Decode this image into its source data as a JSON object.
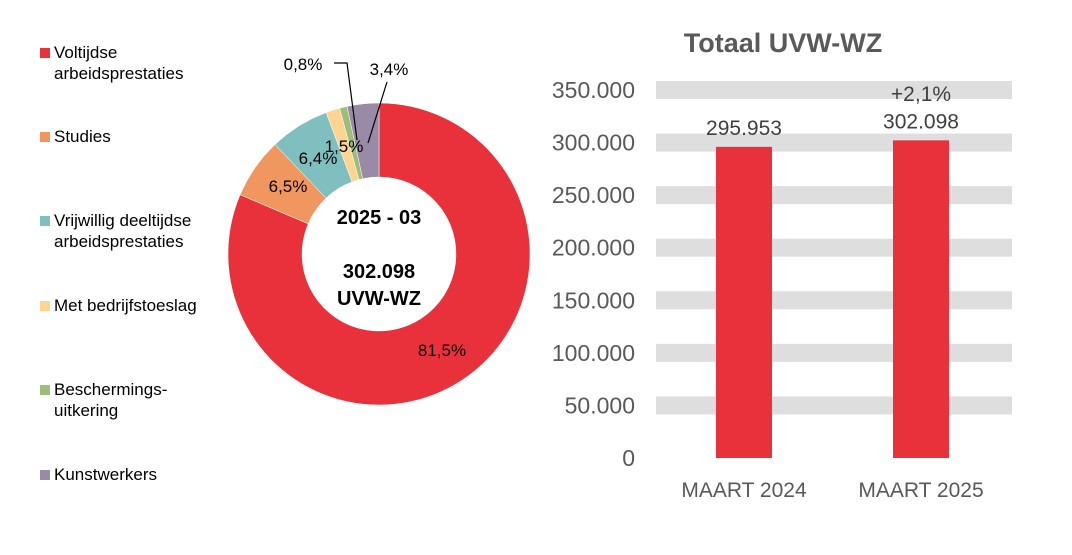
{
  "chart_data": [
    {
      "type": "pie",
      "variant": "donut",
      "center_label": {
        "period": "2025 - 03",
        "total": "302.098",
        "unit": "UVW-WZ"
      },
      "slices": [
        {
          "name": "Voltijdse arbeidsprestaties",
          "value": 81.5,
          "label": "81,5%",
          "color": "#E8313A"
        },
        {
          "name": "Studies",
          "value": 6.5,
          "label": "6,5%",
          "color": "#F0975F"
        },
        {
          "name": "Vrijwillig deeltijdse arbeidsprestaties",
          "value": 6.4,
          "label": "6,4%",
          "color": "#80BFBF"
        },
        {
          "name": "Met bedrijfstoeslag",
          "value": 1.5,
          "label": "1,5%",
          "color": "#FDD590"
        },
        {
          "name": "Beschermings-uitkering",
          "value": 0.8,
          "label": "0,8%",
          "color": "#9DBE7B"
        },
        {
          "name": "Kunstwerkers",
          "value": 3.4,
          "label": "3,4%",
          "color": "#9A8AA5"
        }
      ],
      "legend": {
        "placement": "left",
        "items": [
          [
            "Voltijdse",
            "arbeidsprestaties"
          ],
          [
            "Studies"
          ],
          [
            "Vrijwillig deeltijdse",
            "arbeidsprestaties"
          ],
          [
            "Met bedrijfstoeslag"
          ],
          [
            "Beschermings-",
            "uitkering"
          ],
          [
            "Kunstwerkers"
          ]
        ]
      }
    },
    {
      "type": "bar",
      "title": "Totaal UVW-WZ",
      "categories": [
        "MAART 2024",
        "MAART 2025"
      ],
      "values": [
        295953,
        302098
      ],
      "value_labels": [
        "295.953",
        "302.098"
      ],
      "annotation": "+2,1%",
      "ylim": [
        0,
        350000
      ],
      "yticks": [
        0,
        50000,
        100000,
        150000,
        200000,
        250000,
        300000,
        350000
      ],
      "ytick_labels": [
        "0",
        "50.000",
        "100.000",
        "150.000",
        "200.000",
        "250.000",
        "300.000",
        "350.000"
      ],
      "bar_color": "#E8313A",
      "grid": "banded"
    }
  ]
}
